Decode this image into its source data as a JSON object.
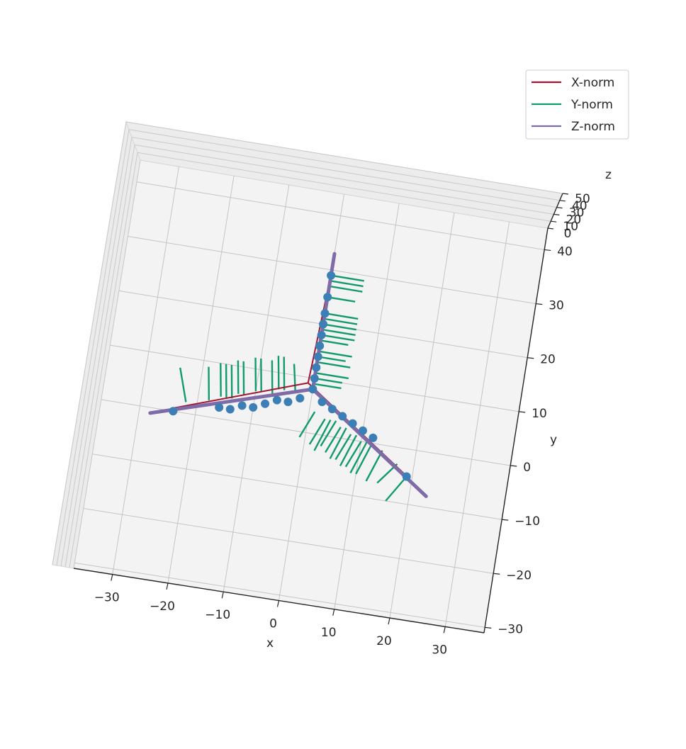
{
  "chart_data": {
    "type": "line3d",
    "title": "",
    "xlabel": "x",
    "ylabel": "y",
    "zlabel": "z",
    "xlim": [
      -37,
      37
    ],
    "ylim": [
      -31,
      44
    ],
    "zlim": [
      0,
      50
    ],
    "xticks": [
      -30,
      -20,
      -10,
      0,
      10,
      20,
      30
    ],
    "yticks": [
      -30,
      -20,
      -10,
      0,
      10,
      20,
      30,
      40
    ],
    "zticks": [
      0,
      10,
      20,
      30,
      40,
      50
    ],
    "grid": true,
    "legend_position": "top-right",
    "series": [
      {
        "name": "X-norm",
        "color": "#a2142f"
      },
      {
        "name": "Y-norm",
        "color": "#119a6e"
      },
      {
        "name": "Z-norm",
        "color": "#7e6ba8"
      }
    ],
    "marker_color": "#3b7fb6",
    "arms": [
      {
        "start": [
          0,
          8
        ],
        "end": [
          0,
          33
        ]
      },
      {
        "start": [
          0,
          8
        ],
        "end": [
          -28,
          -1
        ]
      },
      {
        "start": [
          0,
          8
        ],
        "end": [
          23,
          -8
        ]
      }
    ],
    "markers": [
      [
        0,
        8
      ],
      [
        0,
        10
      ],
      [
        0,
        12
      ],
      [
        0,
        14
      ],
      [
        0,
        16
      ],
      [
        0,
        18
      ],
      [
        0,
        20
      ],
      [
        0,
        22
      ],
      [
        0,
        25
      ],
      [
        0,
        29
      ],
      [
        -2,
        6
      ],
      [
        -4,
        5
      ],
      [
        -6,
        5
      ],
      [
        -8,
        4
      ],
      [
        -10,
        3
      ],
      [
        -12,
        3
      ],
      [
        -14,
        2
      ],
      [
        -16,
        2
      ],
      [
        -24,
        0
      ],
      [
        2,
        6
      ],
      [
        4,
        5
      ],
      [
        6,
        4
      ],
      [
        8,
        3
      ],
      [
        10,
        2
      ],
      [
        12,
        1
      ],
      [
        19,
        -5
      ]
    ],
    "quivers": [
      {
        "start": [
          0,
          29
        ],
        "end": [
          6,
          29
        ]
      },
      {
        "start": [
          0,
          28
        ],
        "end": [
          6,
          28
        ]
      },
      {
        "start": [
          0,
          27
        ],
        "end": [
          6,
          27
        ]
      },
      {
        "start": [
          0,
          25
        ],
        "end": [
          5,
          25
        ]
      },
      {
        "start": [
          0,
          22
        ],
        "end": [
          6,
          22
        ]
      },
      {
        "start": [
          0,
          21
        ],
        "end": [
          6,
          21
        ]
      },
      {
        "start": [
          0,
          20
        ],
        "end": [
          6,
          20
        ]
      },
      {
        "start": [
          0,
          19
        ],
        "end": [
          6,
          19
        ]
      },
      {
        "start": [
          0,
          18
        ],
        "end": [
          6,
          18
        ]
      },
      {
        "start": [
          0,
          17
        ],
        "end": [
          5,
          17
        ]
      },
      {
        "start": [
          0,
          15
        ],
        "end": [
          6,
          15
        ]
      },
      {
        "start": [
          0,
          14
        ],
        "end": [
          5,
          14
        ]
      },
      {
        "start": [
          0,
          13
        ],
        "end": [
          6,
          13
        ]
      },
      {
        "start": [
          0,
          11
        ],
        "end": [
          6,
          11
        ]
      },
      {
        "start": [
          0,
          10
        ],
        "end": [
          5,
          10
        ]
      },
      {
        "start": [
          0,
          9
        ],
        "end": [
          5,
          9
        ]
      },
      {
        "start": [
          -22,
          2
        ],
        "end": [
          -24,
          8
        ]
      },
      {
        "start": [
          -18,
          3
        ],
        "end": [
          -19,
          9
        ]
      },
      {
        "start": [
          -16,
          4
        ],
        "end": [
          -17,
          10
        ]
      },
      {
        "start": [
          -15,
          4
        ],
        "end": [
          -16,
          10
        ]
      },
      {
        "start": [
          -14,
          4
        ],
        "end": [
          -15,
          10
        ]
      },
      {
        "start": [
          -13,
          5
        ],
        "end": [
          -14,
          11
        ]
      },
      {
        "start": [
          -12,
          5
        ],
        "end": [
          -13,
          11
        ]
      },
      {
        "start": [
          -10,
          6
        ],
        "end": [
          -11,
          12
        ]
      },
      {
        "start": [
          -9,
          6
        ],
        "end": [
          -10,
          12
        ]
      },
      {
        "start": [
          -7,
          6
        ],
        "end": [
          -8,
          12
        ]
      },
      {
        "start": [
          -6,
          7
        ],
        "end": [
          -7,
          13
        ]
      },
      {
        "start": [
          -5,
          7
        ],
        "end": [
          -6,
          13
        ]
      },
      {
        "start": [
          -3,
          7
        ],
        "end": [
          -4,
          12
        ]
      },
      {
        "start": [
          1,
          4
        ],
        "end": [
          -1,
          -1
        ]
      },
      {
        "start": [
          3,
          3
        ],
        "end": [
          1,
          -2
        ]
      },
      {
        "start": [
          4,
          3
        ],
        "end": [
          2,
          -3
        ]
      },
      {
        "start": [
          5,
          3
        ],
        "end": [
          3,
          -2
        ]
      },
      {
        "start": [
          6,
          2
        ],
        "end": [
          4,
          -3
        ]
      },
      {
        "start": [
          7,
          2
        ],
        "end": [
          5,
          -4
        ]
      },
      {
        "start": [
          8,
          1
        ],
        "end": [
          6,
          -4
        ]
      },
      {
        "start": [
          9,
          1
        ],
        "end": [
          7,
          -5
        ]
      },
      {
        "start": [
          10,
          0
        ],
        "end": [
          8,
          -5
        ]
      },
      {
        "start": [
          11,
          0
        ],
        "end": [
          9,
          -6
        ]
      },
      {
        "start": [
          12,
          0
        ],
        "end": [
          10,
          -6
        ]
      },
      {
        "start": [
          14,
          -1
        ],
        "end": [
          12,
          -7
        ]
      },
      {
        "start": [
          17,
          -3
        ],
        "end": [
          14,
          -7
        ]
      },
      {
        "start": [
          19,
          -5
        ],
        "end": [
          16,
          -10
        ]
      }
    ]
  }
}
